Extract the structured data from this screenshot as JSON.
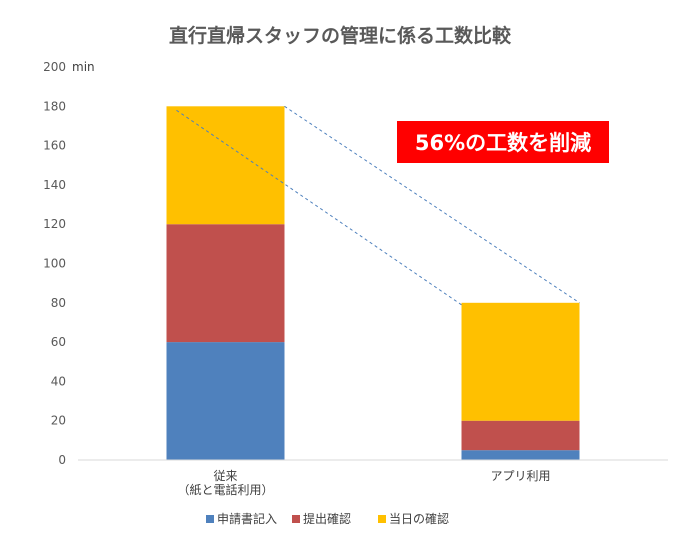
{
  "chart_data": {
    "type": "bar",
    "stacked": true,
    "title": "直行直帰スタッフの管理に係る工数比較",
    "ylabel": "min",
    "ylim": [
      0,
      200
    ],
    "yticks": [
      0,
      20,
      40,
      60,
      80,
      100,
      120,
      140,
      160,
      180,
      200
    ],
    "categories": [
      [
        "従来",
        "（紙と電話利用）"
      ],
      [
        "アプリ利用"
      ]
    ],
    "series": [
      {
        "name": "申請書記入",
        "color": "#4f81bd",
        "values": [
          60,
          5
        ]
      },
      {
        "name": "提出確認",
        "color": "#c0504d",
        "values": [
          60,
          15
        ]
      },
      {
        "name": "当日の確認",
        "color": "#ffc000",
        "values": [
          60,
          60
        ]
      }
    ],
    "legend_position": "bottom",
    "grid": false,
    "annotation": {
      "text": "56%の工数を削減",
      "background": "#ff0000",
      "color": "#ffffff"
    },
    "connector_color": "#4f81bd"
  }
}
